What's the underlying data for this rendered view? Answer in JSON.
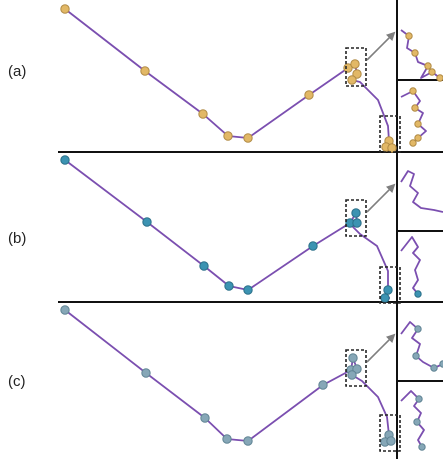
{
  "figure": {
    "colors": {
      "path_line": "#7b4fb0",
      "divider": "#111111",
      "inset_box": "#222222",
      "callout_arrow": "#7f7f7f"
    },
    "panels": [
      {
        "label": "(a)",
        "node_fill": "#e2b866",
        "node_stroke": "#b08a44"
      },
      {
        "label": "(b)",
        "node_fill": "#3c93b2",
        "node_stroke": "#2a6f88"
      },
      {
        "label": "(c)",
        "node_fill": "#86a7b7",
        "node_stroke": "#5f8393"
      }
    ]
  }
}
